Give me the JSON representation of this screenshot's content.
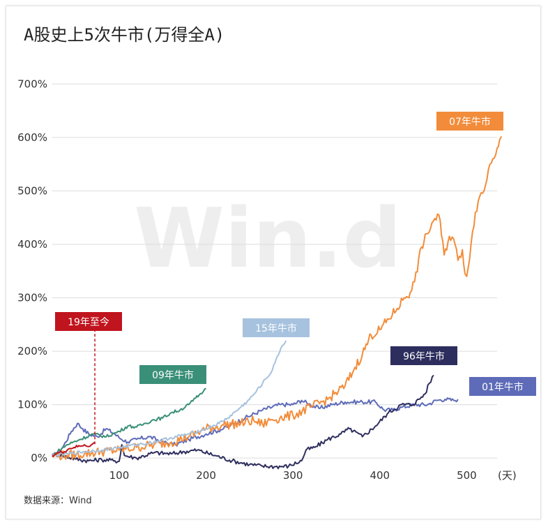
{
  "title": "A股史上5次牛市(万得全A)",
  "source": "数据来源：Wind",
  "watermark": "Win.d",
  "chart_data": {
    "type": "line",
    "title": "A股史上5次牛市(万得全A)",
    "x_unit_label": "(天)",
    "xlim": [
      23,
      535
    ],
    "ylim": [
      -5,
      720
    ],
    "x_ticks": [
      {
        "v": 100,
        "label": "100"
      },
      {
        "v": 200,
        "label": "200"
      },
      {
        "v": 300,
        "label": "300"
      },
      {
        "v": 400,
        "label": "400"
      },
      {
        "v": 500,
        "label": "500"
      }
    ],
    "y_ticks": [
      {
        "v": 0,
        "label": "0%"
      },
      {
        "v": 100,
        "label": "100%"
      },
      {
        "v": 200,
        "label": "200%"
      },
      {
        "v": 300,
        "label": "300%"
      },
      {
        "v": 400,
        "label": "400%"
      },
      {
        "v": 500,
        "label": "500%"
      },
      {
        "v": 600,
        "label": "600%"
      },
      {
        "v": 700,
        "label": "700%"
      }
    ],
    "grid": true,
    "series": [
      {
        "name": "01年牛市",
        "color": "#5d6bb8",
        "label_at": [
          673,
          540
        ],
        "points": [
          [
            23,
            2
          ],
          [
            35,
            20
          ],
          [
            45,
            50
          ],
          [
            52,
            65
          ],
          [
            58,
            55
          ],
          [
            65,
            45
          ],
          [
            75,
            40
          ],
          [
            85,
            55
          ],
          [
            95,
            45
          ],
          [
            100,
            38
          ],
          [
            110,
            30
          ],
          [
            120,
            35
          ],
          [
            135,
            40
          ],
          [
            150,
            30
          ],
          [
            165,
            25
          ],
          [
            180,
            35
          ],
          [
            200,
            45
          ],
          [
            220,
            55
          ],
          [
            245,
            75
          ],
          [
            265,
            90
          ],
          [
            285,
            100
          ],
          [
            300,
            100
          ],
          [
            310,
            108
          ],
          [
            320,
            100
          ],
          [
            330,
            93
          ],
          [
            345,
            100
          ],
          [
            360,
            105
          ],
          [
            380,
            105
          ],
          [
            395,
            105
          ],
          [
            405,
            90
          ],
          [
            415,
            90
          ],
          [
            425,
            95
          ],
          [
            440,
            100
          ],
          [
            455,
            100
          ],
          [
            465,
            108
          ],
          [
            475,
            110
          ],
          [
            485,
            108
          ],
          [
            490,
            110
          ]
        ]
      },
      {
        "name": "96年牛市",
        "color": "#2e2e5e",
        "label_at": [
          560,
          496
        ],
        "points": [
          [
            23,
            8
          ],
          [
            35,
            5
          ],
          [
            50,
            -2
          ],
          [
            65,
            -5
          ],
          [
            80,
            -3
          ],
          [
            95,
            -5
          ],
          [
            100,
            -6
          ],
          [
            103,
            25
          ],
          [
            106,
            5
          ],
          [
            120,
            0
          ],
          [
            140,
            10
          ],
          [
            160,
            8
          ],
          [
            175,
            12
          ],
          [
            190,
            15
          ],
          [
            210,
            5
          ],
          [
            230,
            -5
          ],
          [
            250,
            -12
          ],
          [
            265,
            -15
          ],
          [
            280,
            -16
          ],
          [
            295,
            -15
          ],
          [
            310,
            -5
          ],
          [
            315,
            15
          ],
          [
            325,
            20
          ],
          [
            340,
            35
          ],
          [
            355,
            45
          ],
          [
            365,
            55
          ],
          [
            380,
            40
          ],
          [
            395,
            60
          ],
          [
            410,
            85
          ],
          [
            425,
            100
          ],
          [
            438,
            100
          ],
          [
            445,
            110
          ],
          [
            452,
            120
          ],
          [
            457,
            140
          ],
          [
            462,
            155
          ]
        ]
      },
      {
        "name": "07年牛市",
        "color": "#f28c3a",
        "label_at": [
          626,
          160
        ],
        "points": [
          [
            23,
            5
          ],
          [
            40,
            5
          ],
          [
            60,
            8
          ],
          [
            80,
            12
          ],
          [
            100,
            15
          ],
          [
            120,
            20
          ],
          [
            140,
            25
          ],
          [
            160,
            30
          ],
          [
            180,
            40
          ],
          [
            200,
            55
          ],
          [
            220,
            62
          ],
          [
            240,
            65
          ],
          [
            255,
            70
          ],
          [
            265,
            63
          ],
          [
            275,
            72
          ],
          [
            285,
            75
          ],
          [
            300,
            80
          ],
          [
            320,
            95
          ],
          [
            340,
            110
          ],
          [
            360,
            135
          ],
          [
            370,
            165
          ],
          [
            380,
            195
          ],
          [
            390,
            230
          ],
          [
            400,
            240
          ],
          [
            410,
            260
          ],
          [
            420,
            280
          ],
          [
            428,
            300
          ],
          [
            435,
            310
          ],
          [
            440,
            330
          ],
          [
            448,
            395
          ],
          [
            455,
            420
          ],
          [
            460,
            440
          ],
          [
            468,
            455
          ],
          [
            474,
            380
          ],
          [
            480,
            415
          ],
          [
            485,
            410
          ],
          [
            490,
            370
          ],
          [
            495,
            390
          ],
          [
            498,
            345
          ],
          [
            500,
            340
          ],
          [
            505,
            400
          ],
          [
            510,
            460
          ],
          [
            515,
            490
          ],
          [
            520,
            500
          ],
          [
            525,
            540
          ],
          [
            530,
            560
          ],
          [
            535,
            580
          ],
          [
            538,
            596
          ],
          [
            540,
            602
          ]
        ]
      },
      {
        "name": "09年牛市",
        "color": "#3a8f78",
        "label_at": [
          200,
          523
        ],
        "points": [
          [
            23,
            5
          ],
          [
            40,
            25
          ],
          [
            55,
            35
          ],
          [
            70,
            45
          ],
          [
            85,
            40
          ],
          [
            100,
            50
          ],
          [
            110,
            60
          ],
          [
            120,
            58
          ],
          [
            130,
            65
          ],
          [
            140,
            72
          ],
          [
            150,
            75
          ],
          [
            160,
            85
          ],
          [
            170,
            90
          ],
          [
            180,
            100
          ],
          [
            188,
            112
          ],
          [
            192,
            118
          ],
          [
            197,
            125
          ],
          [
            200,
            130
          ]
        ]
      },
      {
        "name": "15年牛市",
        "color": "#a6c2de",
        "label_at": [
          348,
          456
        ],
        "points": [
          [
            23,
            5
          ],
          [
            40,
            8
          ],
          [
            60,
            12
          ],
          [
            80,
            15
          ],
          [
            100,
            20
          ],
          [
            120,
            25
          ],
          [
            140,
            30
          ],
          [
            160,
            38
          ],
          [
            180,
            45
          ],
          [
            200,
            55
          ],
          [
            215,
            65
          ],
          [
            225,
            75
          ],
          [
            240,
            95
          ],
          [
            250,
            110
          ],
          [
            258,
            125
          ],
          [
            265,
            140
          ],
          [
            270,
            150
          ],
          [
            275,
            160
          ],
          [
            278,
            175
          ],
          [
            282,
            190
          ],
          [
            285,
            200
          ],
          [
            289,
            212
          ],
          [
            292,
            220
          ]
        ]
      },
      {
        "name": "19年至今",
        "color": "#c0141e",
        "label_at": [
          79,
          447
        ],
        "points": [
          [
            23,
            5
          ],
          [
            30,
            10
          ],
          [
            37,
            12
          ],
          [
            43,
            18
          ],
          [
            48,
            20
          ],
          [
            55,
            22
          ],
          [
            60,
            25
          ],
          [
            63,
            22
          ],
          [
            68,
            25
          ],
          [
            72,
            28
          ]
        ]
      }
    ],
    "annotations": [
      {
        "series": "19年至今",
        "style": "dashed-drop-line",
        "from_y": 26,
        "to_label": true
      }
    ]
  }
}
